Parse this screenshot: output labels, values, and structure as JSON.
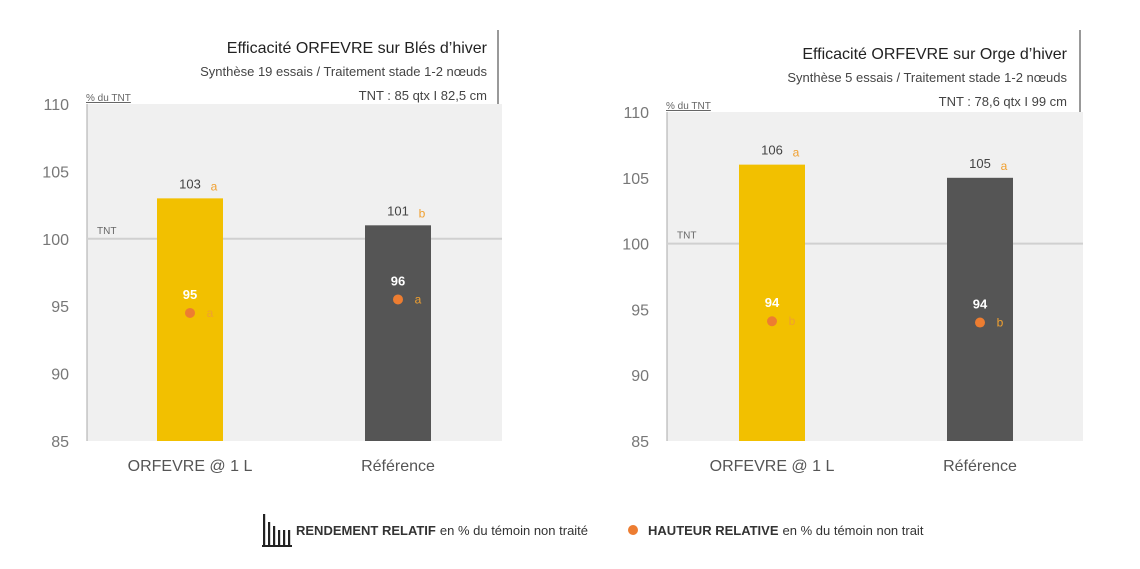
{
  "colors": {
    "orfevre": "#F2C000",
    "reference": "#555555",
    "height_dot": "#ED7D31",
    "letter": "#F0A030",
    "panel_bg": "#F0F0F0",
    "tnt_line": "#D0D0D0"
  },
  "chart_data": [
    {
      "type": "bar",
      "title": "Efficacité ORFEVRE sur Blés d’hiver",
      "subtitle1": "Synthèse 19 essais / Traitement stade 1-2 nœuds",
      "subtitle2": "TNT : 85 qtx  I  82,5 cm",
      "unit_label": "% du TNT",
      "tnt_label": "TNT",
      "tnt_value": 100,
      "ylim": [
        85,
        110
      ],
      "yticks": [
        85,
        90,
        95,
        100,
        105,
        110
      ],
      "categories": [
        "ORFEVRE @ 1 L",
        "Référence"
      ],
      "bars": {
        "values": [
          103,
          101
        ],
        "labels": [
          "103",
          "101"
        ],
        "letters": [
          "a",
          "b"
        ]
      },
      "points": {
        "values": [
          94.5,
          95.5
        ],
        "labels": [
          "95",
          "96"
        ],
        "letters": [
          "a",
          "a"
        ]
      }
    },
    {
      "type": "bar",
      "title": "Efficacité ORFEVRE sur Orge d’hiver",
      "subtitle1": "Synthèse 5 essais / Traitement stade 1-2 nœuds",
      "subtitle2": "TNT : 78,6 qtx  I  99 cm",
      "unit_label": "% du TNT",
      "tnt_label": "TNT",
      "tnt_value": 100,
      "ylim": [
        85,
        110
      ],
      "yticks": [
        85,
        90,
        95,
        100,
        105,
        110
      ],
      "categories": [
        "ORFEVRE @ 1 L",
        "Référence"
      ],
      "bars": {
        "values": [
          106,
          105
        ],
        "labels": [
          "106",
          "105"
        ],
        "letters": [
          "a",
          "a"
        ]
      },
      "points": {
        "values": [
          94.1,
          94
        ],
        "labels": [
          "94",
          "94"
        ],
        "letters": [
          "b",
          "b"
        ]
      }
    }
  ],
  "legend": {
    "yield_bold": "RENDEMENT RELATIF",
    "yield_rest": "en % du témoin non traité",
    "height_bold": "HAUTEUR RELATIVE",
    "height_rest": "en % du témoin non trait"
  }
}
